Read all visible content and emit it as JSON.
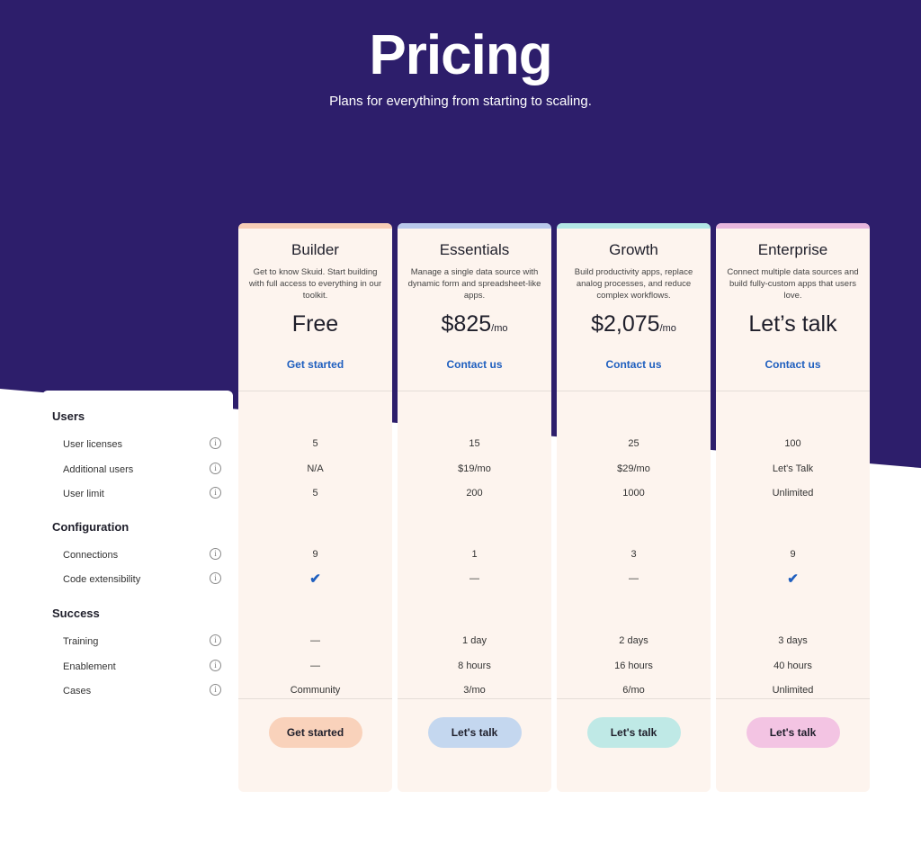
{
  "header": {
    "title": "Pricing",
    "subtitle": "Plans for everything from starting to scaling."
  },
  "colors": {
    "header_bg": "#2d1e6b",
    "card_bg": "#fdf4ee",
    "link": "#1f5fbf"
  },
  "sections": [
    {
      "title": "Users",
      "rows": [
        "User licenses",
        "Additional users",
        "User limit"
      ]
    },
    {
      "title": "Configuration",
      "rows": [
        "Connections",
        "Code extensibility"
      ]
    },
    {
      "title": "Success",
      "rows": [
        "Training",
        "Enablement",
        "Cases"
      ]
    }
  ],
  "info_icon": "info-circle-icon",
  "check_icon": "checkmark-icon",
  "plans": [
    {
      "name": "Builder",
      "description": "Get to know Skuid. Start building with full access to everything in our toolkit.",
      "price": "Free",
      "price_unit": "",
      "cta_link": "Get started",
      "button": "Get started",
      "accent": "#f6cdb6",
      "button_color": "#f9d2bb",
      "values": [
        "5",
        "N/A",
        "5",
        "9",
        "✔",
        "—",
        "—",
        "Community"
      ]
    },
    {
      "name": "Essentials",
      "description": "Manage a single data source with dynamic form and spreadsheet-like apps.",
      "price": "$825",
      "price_unit": "/mo",
      "cta_link": "Contact us",
      "button": "Let's talk",
      "accent": "#b9c8ec",
      "button_color": "#c4d7ef",
      "values": [
        "15",
        "$19/mo",
        "200",
        "1",
        "—",
        "1 day",
        "8 hours",
        "3/mo"
      ]
    },
    {
      "name": "Growth",
      "description": "Build productivity apps, replace analog processes, and reduce complex workflows.",
      "price": "$2,075",
      "price_unit": "/mo",
      "cta_link": "Contact us",
      "button": "Let's talk",
      "accent": "#b3e6e6",
      "button_color": "#bfe9e6",
      "values": [
        "25",
        "$29/mo",
        "1000",
        "3",
        "—",
        "2 days",
        "16 hours",
        "6/mo"
      ]
    },
    {
      "name": "Enterprise",
      "description": "Connect multiple data sources and build fully-custom apps that users love.",
      "price": "Let’s talk",
      "price_unit": "",
      "cta_link": "Contact us",
      "button": "Let's talk",
      "accent": "#e7b6de",
      "button_color": "#f3c4e3",
      "values": [
        "100",
        "Let's Talk",
        "Unlimited",
        "9",
        "✔",
        "3 days",
        "40 hours",
        "Unlimited"
      ]
    }
  ]
}
